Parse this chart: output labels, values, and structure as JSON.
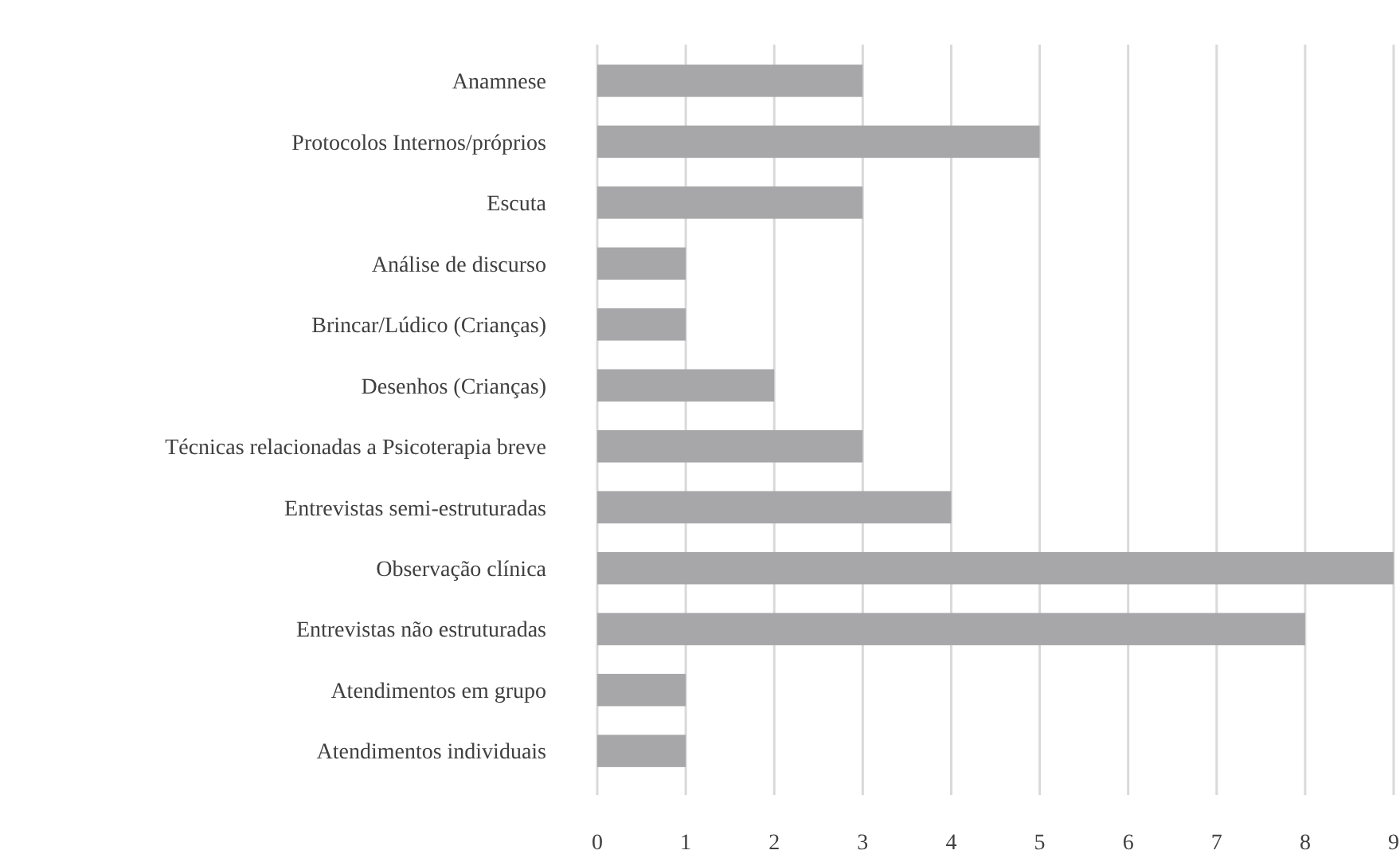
{
  "chart_data": {
    "type": "bar",
    "orientation": "horizontal",
    "categories": [
      "Anamnese",
      "Protocolos Internos/próprios",
      "Escuta",
      "Análise de discurso",
      "Brincar/Lúdico (Crianças)",
      "Desenhos (Crianças)",
      "Técnicas relacionadas a Psicoterapia breve",
      "Entrevistas semi-estruturadas",
      "Observação clínica",
      "Entrevistas não estruturadas",
      "Atendimentos em grupo",
      "Atendimentos individuais"
    ],
    "values": [
      3,
      5,
      3,
      1,
      1,
      2,
      3,
      4,
      9,
      8,
      1,
      1
    ],
    "color": "#a7a7a9",
    "xlim": [
      0,
      9
    ],
    "xticks": [
      0,
      1,
      2,
      3,
      4,
      5,
      6,
      7,
      8,
      9
    ],
    "grid": "x"
  }
}
